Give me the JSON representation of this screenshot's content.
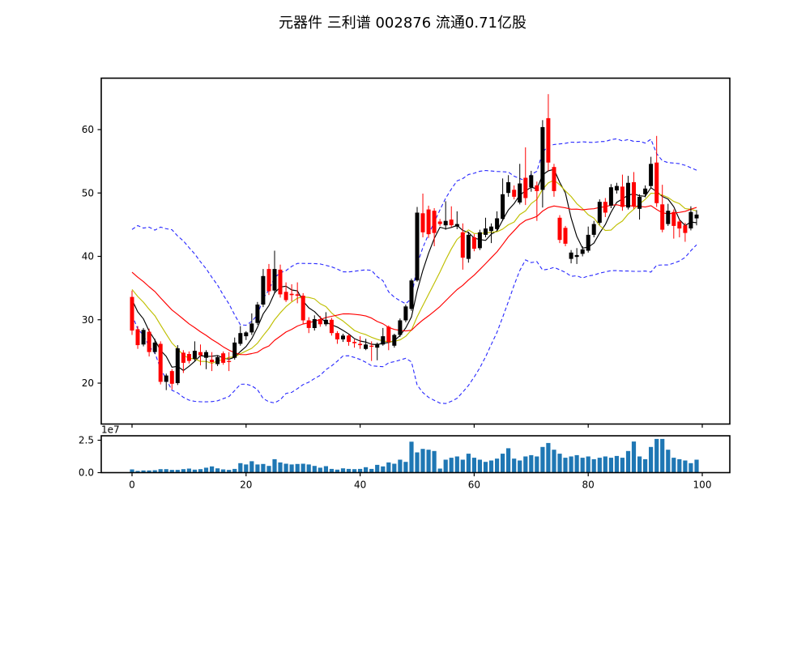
{
  "figure": {
    "title": "元器件 三利谱 002876 流通0.71亿股",
    "background": "#ffffff"
  },
  "chart_data": {
    "type": "candlestick",
    "title": "元器件 三利谱 002876 流通0.71亿股",
    "panels": [
      "price",
      "volume"
    ],
    "legend": "none",
    "grid": false,
    "x_axis": {
      "tick_values": [
        0,
        20,
        40,
        60,
        80,
        100
      ],
      "tick_labels": [
        "0",
        "20",
        "40",
        "60",
        "80",
        "100"
      ],
      "range": [
        -5.4,
        104.8
      ]
    },
    "price_axis": {
      "tick_values": [
        20,
        30,
        40,
        50,
        60
      ],
      "tick_labels": [
        "20",
        "30",
        "40",
        "50",
        "60"
      ],
      "range": [
        13.5,
        68.1
      ]
    },
    "volume_axis": {
      "tick_values": [
        0,
        25000000
      ],
      "tick_labels": [
        "0.0",
        "2.5"
      ],
      "offset_label": "1e7",
      "range": [
        0,
        28400000
      ]
    },
    "colors": {
      "up_candle": "#000000",
      "down_candle": "#ff0000",
      "ma5_line": "#000000",
      "ma10_line": "#bfbf00",
      "ma20_line": "#ff0000",
      "bollinger_band": "#2727ff",
      "volume_bar": "#1f77b4",
      "spine": "#000000"
    },
    "overlays": {
      "ma_lines": [
        {
          "name": "MA5",
          "window": 5
        },
        {
          "name": "MA10",
          "window": 10
        },
        {
          "name": "MA20",
          "window": 20
        }
      ],
      "bollinger": {
        "window": 20,
        "mult": 2,
        "style": "dashed"
      },
      "warmup_closes": [
        42,
        41.5,
        42.5,
        41,
        41.5,
        40,
        40.5,
        39,
        39.5,
        38,
        38.5,
        37,
        37.5,
        36,
        36.5,
        35,
        35.5,
        34,
        34.5,
        33.5
      ]
    },
    "candles_ohlc": [
      [
        33.6,
        34.6,
        27.6,
        28.3
      ],
      [
        28.5,
        29.0,
        25.4,
        26.0
      ],
      [
        26.1,
        28.7,
        25.8,
        28.4
      ],
      [
        28.1,
        28.6,
        24.2,
        24.9
      ],
      [
        24.9,
        27.0,
        24.6,
        26.4
      ],
      [
        26.2,
        26.6,
        19.8,
        20.2
      ],
      [
        20.2,
        21.5,
        18.9,
        21.2
      ],
      [
        21.9,
        22.2,
        19.0,
        19.9
      ],
      [
        20.0,
        26.0,
        19.7,
        25.5
      ],
      [
        24.8,
        25.2,
        21.6,
        23.2
      ],
      [
        24.6,
        25.0,
        23.1,
        23.5
      ],
      [
        23.8,
        26.6,
        23.5,
        25.1
      ],
      [
        24.9,
        26.1,
        22.8,
        24.4
      ],
      [
        24.0,
        25.2,
        22.2,
        24.9
      ],
      [
        23.7,
        24.9,
        21.9,
        23.3
      ],
      [
        23.0,
        24.4,
        22.7,
        24.1
      ],
      [
        24.7,
        25.0,
        22.9,
        23.2
      ],
      [
        23.5,
        24.9,
        21.9,
        23.4
      ],
      [
        24.0,
        27.2,
        23.7,
        26.4
      ],
      [
        26.2,
        29.0,
        25.9,
        27.9
      ],
      [
        27.4,
        28.2,
        26.8,
        28.0
      ],
      [
        28.0,
        31.0,
        27.6,
        29.4
      ],
      [
        29.5,
        32.8,
        29.2,
        32.4
      ],
      [
        32.4,
        38.0,
        32.0,
        36.9
      ],
      [
        38.0,
        38.8,
        33.9,
        34.5
      ],
      [
        34.6,
        40.9,
        34.2,
        38.0
      ],
      [
        37.9,
        38.7,
        33.5,
        34.0
      ],
      [
        34.4,
        35.9,
        32.8,
        33.1
      ],
      [
        34.1,
        35.6,
        32.9,
        33.9
      ],
      [
        34.0,
        35.9,
        32.6,
        33.8
      ],
      [
        33.8,
        34.2,
        29.3,
        29.9
      ],
      [
        29.9,
        30.4,
        27.9,
        28.7
      ],
      [
        28.7,
        30.7,
        28.3,
        30.1
      ],
      [
        30.1,
        30.6,
        28.9,
        29.3
      ],
      [
        29.3,
        31.2,
        29.0,
        30.0
      ],
      [
        30.0,
        30.3,
        27.5,
        27.9
      ],
      [
        27.9,
        28.2,
        26.2,
        26.9
      ],
      [
        26.9,
        27.8,
        26.5,
        27.5
      ],
      [
        27.5,
        27.7,
        25.9,
        26.5
      ],
      [
        26.5,
        26.9,
        25.6,
        26.3
      ],
      [
        26.2,
        27.4,
        25.4,
        26.0
      ],
      [
        25.4,
        27.0,
        25.2,
        26.1
      ],
      [
        25.9,
        26.6,
        23.5,
        25.8
      ],
      [
        25.6,
        26.4,
        23.6,
        26.2
      ],
      [
        26.1,
        28.7,
        25.9,
        27.4
      ],
      [
        28.9,
        29.1,
        25.2,
        26.5
      ],
      [
        25.9,
        27.8,
        25.6,
        27.6
      ],
      [
        27.6,
        30.2,
        27.3,
        29.9
      ],
      [
        29.9,
        32.4,
        29.6,
        32.1
      ],
      [
        31.7,
        36.5,
        31.4,
        36.2
      ],
      [
        36.2,
        47.8,
        36.0,
        46.9
      ],
      [
        46.8,
        49.9,
        43.0,
        43.8
      ],
      [
        47.4,
        48.0,
        42.9,
        43.5
      ],
      [
        47.2,
        47.6,
        41.6,
        43.7
      ],
      [
        45.5,
        45.9,
        44.8,
        45.1
      ],
      [
        44.9,
        48.7,
        44.2,
        45.6
      ],
      [
        45.8,
        47.9,
        44.6,
        44.9
      ],
      [
        44.7,
        47.1,
        44.3,
        45.1
      ],
      [
        43.8,
        45.2,
        37.9,
        39.8
      ],
      [
        39.6,
        43.9,
        39.0,
        43.4
      ],
      [
        43.0,
        43.5,
        40.8,
        41.2
      ],
      [
        41.3,
        44.2,
        41.0,
        43.8
      ],
      [
        43.4,
        46.1,
        43.0,
        44.4
      ],
      [
        44.0,
        45.2,
        42.1,
        44.7
      ],
      [
        44.3,
        47.1,
        44.0,
        46.0
      ],
      [
        45.9,
        52.3,
        45.6,
        49.8
      ],
      [
        50.0,
        52.8,
        49.4,
        51.7
      ],
      [
        50.5,
        51.2,
        49.0,
        49.4
      ],
      [
        48.5,
        54.6,
        48.2,
        51.5
      ],
      [
        52.4,
        57.2,
        48.1,
        49.2
      ],
      [
        50.9,
        53.5,
        50.2,
        52.8
      ],
      [
        51.2,
        51.8,
        45.6,
        50.3
      ],
      [
        50.5,
        61.5,
        47.7,
        60.4
      ],
      [
        61.8,
        65.6,
        53.5,
        54.8
      ],
      [
        54.1,
        54.6,
        49.4,
        50.3
      ],
      [
        46.1,
        46.5,
        42.1,
        42.6
      ],
      [
        44.5,
        44.8,
        41.6,
        42.0
      ],
      [
        39.6,
        41.0,
        38.9,
        40.6
      ],
      [
        39.9,
        41.3,
        38.8,
        40.2
      ],
      [
        40.4,
        41.6,
        40.0,
        41.1
      ],
      [
        40.9,
        44.7,
        40.6,
        43.4
      ],
      [
        43.4,
        45.6,
        43.0,
        45.1
      ],
      [
        45.3,
        49.0,
        45.0,
        48.6
      ],
      [
        48.6,
        49.2,
        46.2,
        46.9
      ],
      [
        48.0,
        51.4,
        47.6,
        50.9
      ],
      [
        50.4,
        51.6,
        49.9,
        51.1
      ],
      [
        51.0,
        52.9,
        47.2,
        47.8
      ],
      [
        47.7,
        52.7,
        47.4,
        51.6
      ],
      [
        51.7,
        53.3,
        47.5,
        47.9
      ],
      [
        47.5,
        49.8,
        45.8,
        49.4
      ],
      [
        49.8,
        51.2,
        49.3,
        50.7
      ],
      [
        51.1,
        55.7,
        50.8,
        54.6
      ],
      [
        54.8,
        59.0,
        47.8,
        48.4
      ],
      [
        48.2,
        51.3,
        43.8,
        44.2
      ],
      [
        45.1,
        48.3,
        44.8,
        47.2
      ],
      [
        47.0,
        47.4,
        42.8,
        44.8
      ],
      [
        45.5,
        45.8,
        43.0,
        44.4
      ],
      [
        44.9,
        45.3,
        42.3,
        43.7
      ],
      [
        44.4,
        47.9,
        44.1,
        47.0
      ],
      [
        46.0,
        47.3,
        44.9,
        46.6
      ]
    ],
    "volumes": [
      2500000,
      1300000,
      1700000,
      1700000,
      1900000,
      2700000,
      2700000,
      2100000,
      2100000,
      2700000,
      3100000,
      2300000,
      2700000,
      3800000,
      4800000,
      3300000,
      2500000,
      2100000,
      2900000,
      7300000,
      6300000,
      8800000,
      6300000,
      6700000,
      5200000,
      10400000,
      7900000,
      6900000,
      6300000,
      6700000,
      6900000,
      6300000,
      5200000,
      3800000,
      5000000,
      2900000,
      2300000,
      3300000,
      2900000,
      2700000,
      2900000,
      4200000,
      2900000,
      6000000,
      4800000,
      7900000,
      6900000,
      10000000,
      8300000,
      23900000,
      15600000,
      18300000,
      17700000,
      16700000,
      3100000,
      10000000,
      11500000,
      12500000,
      10000000,
      14600000,
      11500000,
      10000000,
      8300000,
      9400000,
      10800000,
      14600000,
      18800000,
      10800000,
      9400000,
      12500000,
      13500000,
      12500000,
      19800000,
      22900000,
      17700000,
      14600000,
      11500000,
      12500000,
      13500000,
      11500000,
      12500000,
      10400000,
      11500000,
      12500000,
      11500000,
      12900000,
      11500000,
      16700000,
      24000000,
      12500000,
      10400000,
      19800000,
      26000000,
      26000000,
      17700000,
      11500000,
      10400000,
      9400000,
      7300000,
      10000000
    ]
  }
}
